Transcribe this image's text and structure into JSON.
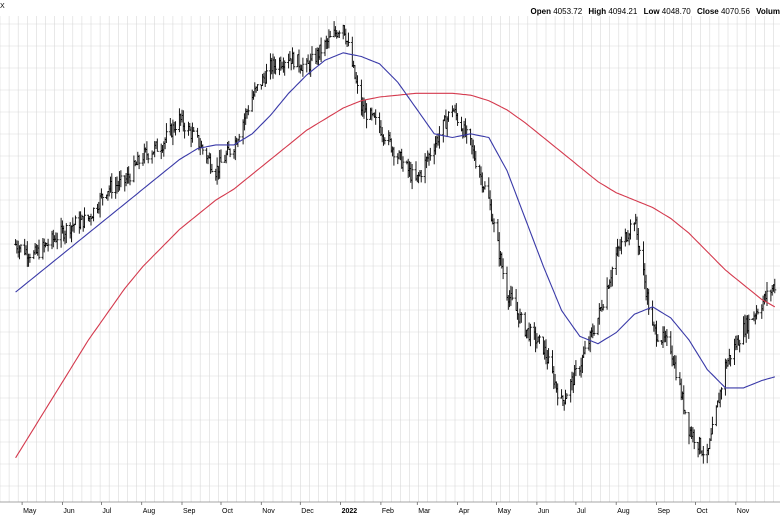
{
  "header": {
    "symbol_fragment": "X",
    "open_label": "Open",
    "open_value": "4053.72",
    "high_label": "High",
    "high_value": "4094.21",
    "low_label": "Low",
    "low_value": "4048.70",
    "close_label": "Close",
    "close_value": "4070.56",
    "volume_label": "Volum"
  },
  "colors": {
    "price_bars": "#000000",
    "ma_short": "#3a3aa8",
    "ma_long": "#d43a4e",
    "grid": "#d9d9d9",
    "background": "#ffffff"
  },
  "chart_data": {
    "type": "line",
    "x": [
      "2021-04-26",
      "2021-05-10",
      "2021-05-24",
      "2021-06-07",
      "2021-06-21",
      "2021-07-05",
      "2021-07-19",
      "2021-08-02",
      "2021-08-16",
      "2021-08-30",
      "2021-09-13",
      "2021-09-27",
      "2021-10-11",
      "2021-10-25",
      "2021-11-08",
      "2021-11-22",
      "2021-12-06",
      "2021-12-20",
      "2022-01-03",
      "2022-01-17",
      "2022-01-31",
      "2022-02-14",
      "2022-02-28",
      "2022-03-14",
      "2022-03-28",
      "2022-04-11",
      "2022-04-25",
      "2022-05-09",
      "2022-05-23",
      "2022-06-06",
      "2022-06-20",
      "2022-07-04",
      "2022-07-18",
      "2022-08-01",
      "2022-08-15",
      "2022-08-29",
      "2022-09-12",
      "2022-09-26",
      "2022-10-10",
      "2022-10-24",
      "2022-11-07",
      "2022-11-21",
      "2022-12-01"
    ],
    "series": [
      {
        "values": [
          4180,
          4150,
          4190,
          4230,
          4250,
          4330,
          4350,
          4420,
          4450,
          4520,
          4460,
          4380,
          4450,
          4580,
          4660,
          4690,
          4660,
          4720,
          4780,
          4550,
          4500,
          4420,
          4350,
          4450,
          4550,
          4450,
          4300,
          4050,
          3950,
          3900,
          3750,
          3850,
          3980,
          4150,
          4250,
          3950,
          3900,
          3680,
          3600,
          3850,
          3950,
          4020,
          4070
        ]
      },
      {
        "values": [
          4050,
          4090,
          4130,
          4170,
          4210,
          4250,
          4290,
          4330,
          4370,
          4410,
          4440,
          4450,
          4450,
          4480,
          4530,
          4590,
          4640,
          4680,
          4700,
          4690,
          4670,
          4620,
          4550,
          4480,
          4470,
          4480,
          4470,
          4380,
          4250,
          4120,
          4000,
          3930,
          3910,
          3940,
          3990,
          4010,
          3980,
          3920,
          3840,
          3790,
          3790,
          3810,
          3820
        ]
      },
      {
        "values": [
          3600,
          3680,
          3760,
          3840,
          3920,
          3990,
          4060,
          4120,
          4170,
          4220,
          4260,
          4300,
          4330,
          4370,
          4410,
          4450,
          4490,
          4520,
          4550,
          4570,
          4580,
          4585,
          4590,
          4590,
          4590,
          4585,
          4570,
          4545,
          4510,
          4470,
          4430,
          4390,
          4350,
          4320,
          4300,
          4280,
          4250,
          4210,
          4160,
          4110,
          4070,
          4030,
          4010
        ]
      }
    ],
    "x_tick_labels": [
      "May",
      "Jun",
      "Jul",
      "Aug",
      "Sep",
      "Oct",
      "Nov",
      "Dec",
      "2022",
      "Feb",
      "Mar",
      "Apr",
      "May",
      "Jun",
      "Jul",
      "Aug",
      "Sep",
      "Oct",
      "Nov"
    ],
    "ylim": [
      3480,
      4800
    ],
    "grid": true,
    "legend": "none"
  }
}
